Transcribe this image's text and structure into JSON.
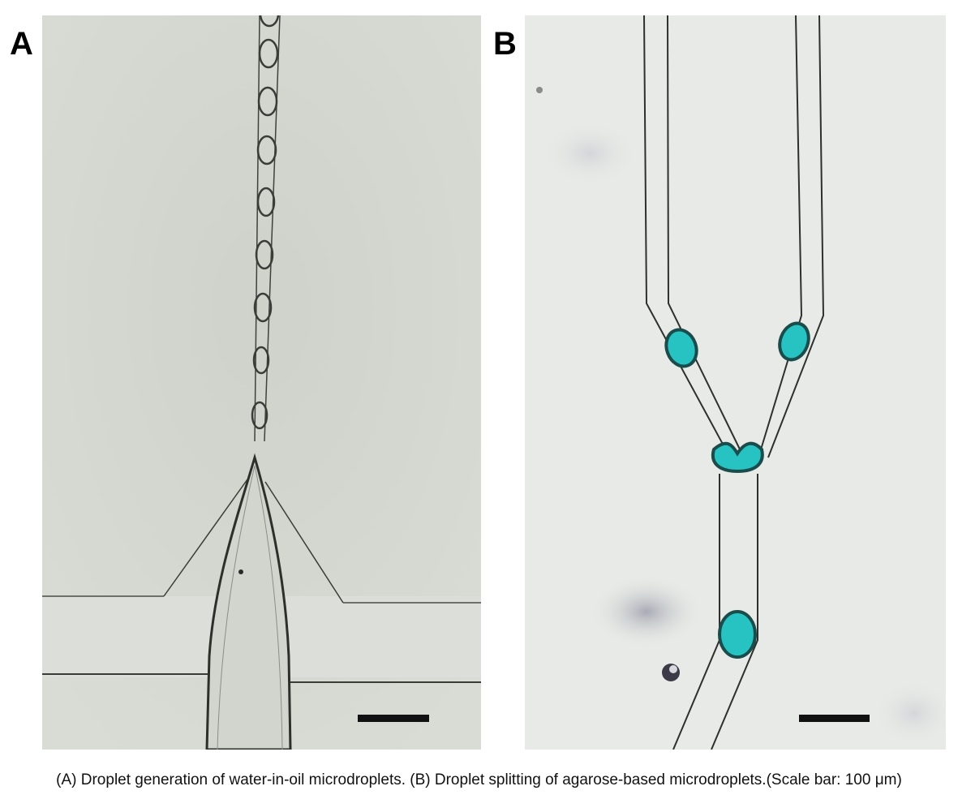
{
  "panels": {
    "a": {
      "label": "A"
    },
    "b": {
      "label": "B"
    }
  },
  "caption": "(A) Droplet generation of water-in-oil microdroplets. (B) Droplet splitting of agarose-based microdroplets.(Scale bar: 100 μm)",
  "colors": {
    "panel_a_background": "#d4d6d0",
    "panel_b_background": "#e6e9e5",
    "droplet_fill": "#27c2c2",
    "scale_bar": "#111111"
  }
}
